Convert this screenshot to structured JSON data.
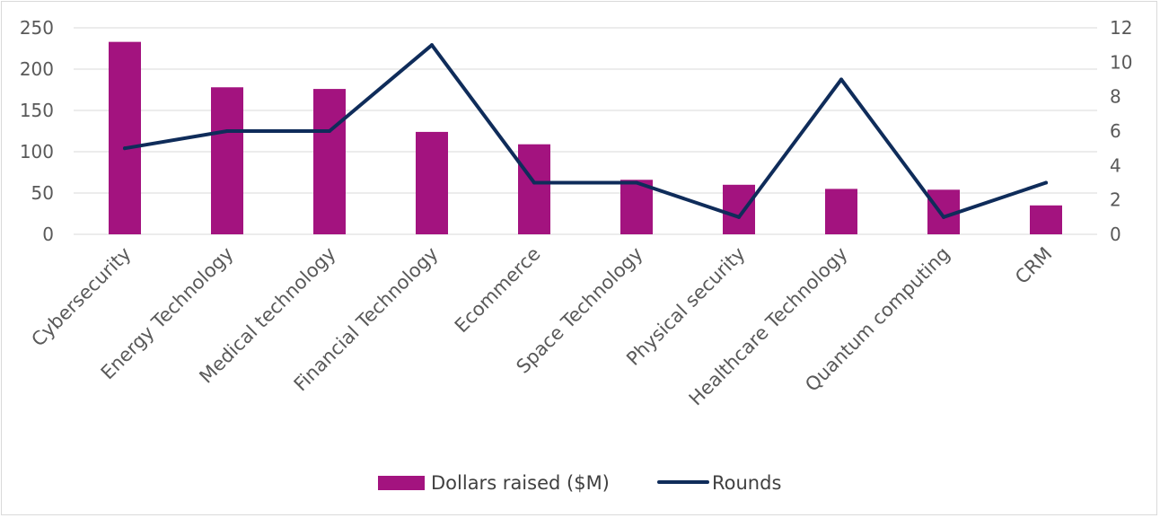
{
  "chart_data": {
    "type": "bar",
    "categories": [
      "Cybersecurity",
      "Energy Technology",
      "Medical technology",
      "Financial Technology",
      "Ecommerce",
      "Space Technology",
      "Physical security",
      "Healthcare Technology",
      "Quantum computing",
      "CRM"
    ],
    "series": [
      {
        "name": "Dollars raised ($M)",
        "type": "bar",
        "axis": "left",
        "color": "#a3137f",
        "values": [
          233,
          178,
          176,
          124,
          109,
          66,
          60,
          55,
          54,
          35
        ]
      },
      {
        "name": "Rounds",
        "type": "line",
        "axis": "right",
        "color": "#0f2c5a",
        "values": [
          5,
          6,
          6,
          11,
          3,
          3,
          1,
          9,
          1,
          3
        ]
      }
    ],
    "y_left": {
      "ylim": [
        0,
        250
      ],
      "ticks": [
        "0",
        "50",
        "100",
        "150",
        "200",
        "250"
      ]
    },
    "y_right": {
      "ylim": [
        0,
        12
      ],
      "ticks": [
        "0",
        "2",
        "4",
        "6",
        "8",
        "10",
        "12"
      ]
    },
    "grid": true,
    "legend": "bottom-center",
    "title": "",
    "xlabel": "",
    "ylabel": ""
  }
}
